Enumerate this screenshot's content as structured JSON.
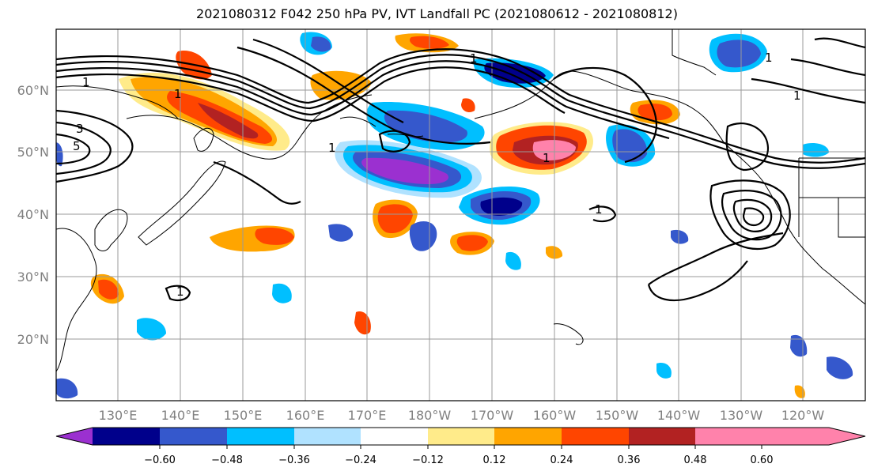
{
  "title": "2021080312 F042 250 hPa PV, IVT Landfall PC (2021080612 - 2021080812)",
  "lat_labels": [
    "60°N",
    "50°N",
    "40°N",
    "30°N",
    "20°N"
  ],
  "lon_labels": [
    "130°E",
    "140°E",
    "150°E",
    "160°E",
    "170°E",
    "180°W",
    "170°W",
    "160°W",
    "150°W",
    "140°W",
    "130°W",
    "120°W"
  ],
  "colorbar": {
    "colors": [
      "#9b30d0",
      "#00008b",
      "#3558cc",
      "#00bfff",
      "#b0e2ff",
      "#ffffff",
      "#ffeb8a",
      "#ffa500",
      "#ff4500",
      "#b22222",
      "#ff82ab"
    ],
    "tick_labels": [
      "−0.60",
      "−0.48",
      "−0.36",
      "−0.24",
      "−0.12",
      "0.12",
      "0.24",
      "0.36",
      "0.48",
      "0.60"
    ]
  },
  "contour_labels": [
    "1",
    "3",
    "5",
    "1",
    "1",
    "1",
    "1",
    "1",
    "1",
    "1",
    "1"
  ]
}
